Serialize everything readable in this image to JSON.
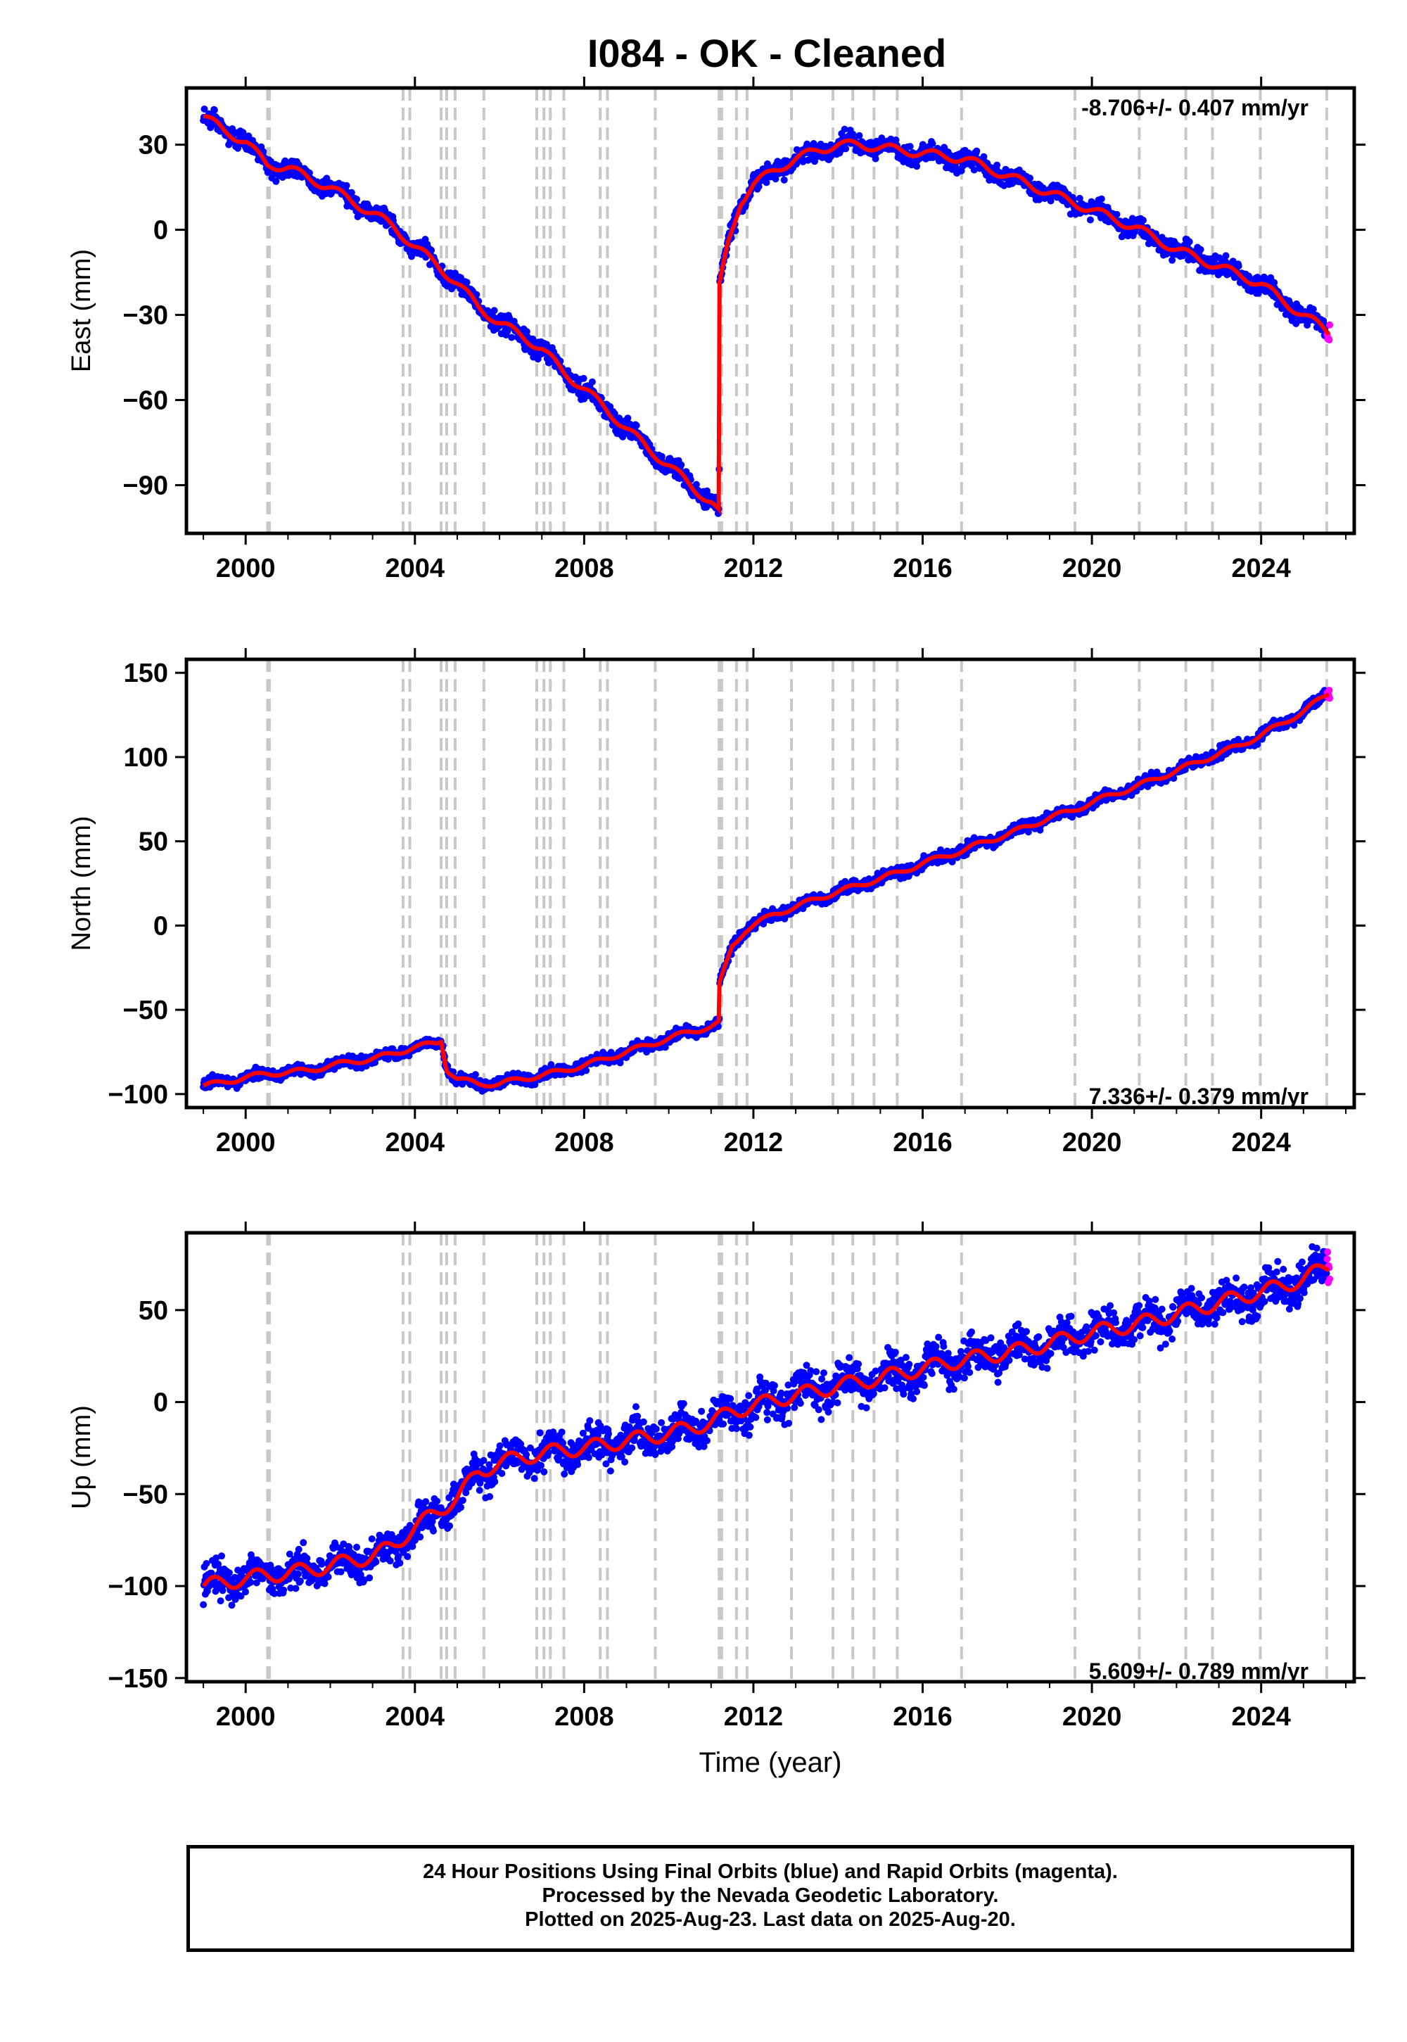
{
  "title": "I084  - OK - Cleaned",
  "footer": {
    "line1": "24 Hour Positions Using Final Orbits (blue) and Rapid Orbits (magenta).",
    "line2": "Processed by the Nevada Geodetic Laboratory.",
    "line3": "Plotted on 2025-Aug-23. Last data on 2025-Aug-20."
  },
  "colors": {
    "final_orbits": "#0000ff",
    "rapid_orbits": "#ff00ff",
    "model": "#ff0000",
    "event_lines": "#c8c8c8"
  },
  "event_dates": [
    2000.52,
    2000.56,
    2003.72,
    2003.88,
    2004.62,
    2004.75,
    2004.95,
    2005.63,
    2006.88,
    2007.05,
    2007.2,
    2007.52,
    2008.38,
    2008.55,
    2009.68,
    2011.19,
    2011.25,
    2011.6,
    2011.85,
    2012.9,
    2013.88,
    2014.35,
    2014.85,
    2015.4,
    2016.92,
    2019.6,
    2021.12,
    2022.22,
    2022.85,
    2023.98,
    2025.55
  ],
  "chart_data": [
    {
      "type": "scatter",
      "ylabel": "East (mm)",
      "xlabel": "",
      "rate_label": "-8.706+/- 0.407 mm/yr",
      "xlim": [
        1998.6,
        2026.2
      ],
      "ylim": [
        -107,
        50
      ],
      "x_ticks": [
        "2000",
        "2004",
        "2008",
        "2012",
        "2016",
        "2020",
        "2024"
      ],
      "y_ticks": [
        {
          "value": 30,
          "label": "30"
        },
        {
          "value": 0,
          "label": "0"
        },
        {
          "value": -30,
          "label": "−30"
        },
        {
          "value": -60,
          "label": "−60"
        },
        {
          "value": -90,
          "label": "−90"
        }
      ],
      "grid": false,
      "series": [
        {
          "x": [
            1999.0,
            1999.5,
            2000.0,
            2000.5,
            2001.0,
            2001.5,
            2002.0,
            2002.5,
            2003.0,
            2003.5,
            2004.0,
            2004.5,
            2005.0,
            2005.5,
            2006.0,
            2006.5,
            2007.0,
            2007.5,
            2008.0,
            2008.5,
            2009.0,
            2009.5,
            2010.0,
            2010.5,
            2011.0,
            2011.19,
            2011.2,
            2011.4,
            2011.7,
            2012.0,
            2012.5,
            2013.0,
            2013.5,
            2014.0,
            2014.5,
            2015.0,
            2015.5,
            2016.0,
            2016.5,
            2017.0,
            2017.5,
            2018.0,
            2018.5,
            2019.0,
            2019.5,
            2020.0,
            2020.5,
            2021.0,
            2021.5,
            2022.0,
            2022.5,
            2023.0,
            2023.5,
            2024.0,
            2024.5,
            2025.0,
            2025.6
          ],
          "y": [
            40,
            35,
            31,
            23,
            22,
            18,
            15,
            10,
            6,
            1,
            -6,
            -12,
            -19,
            -27,
            -33,
            -37,
            -42,
            -50,
            -56,
            -63,
            -70,
            -77,
            -83,
            -90,
            -96,
            -100,
            -20,
            -5,
            10,
            16,
            21,
            25,
            28,
            30,
            30,
            29,
            28,
            27,
            26,
            25,
            22,
            19,
            16,
            13,
            10,
            7,
            4,
            1,
            -3,
            -7,
            -10,
            -13,
            -16,
            -19,
            -25,
            -30,
            -36
          ]
        }
      ]
    },
    {
      "type": "scatter",
      "ylabel": "North (mm)",
      "xlabel": "",
      "rate_label": "7.336+/- 0.379 mm/yr",
      "xlim": [
        1998.6,
        2026.2
      ],
      "ylim": [
        -108,
        158
      ],
      "x_ticks": [
        "2000",
        "2004",
        "2008",
        "2012",
        "2016",
        "2020",
        "2024"
      ],
      "y_ticks": [
        {
          "value": 150,
          "label": "150"
        },
        {
          "value": 100,
          "label": "100"
        },
        {
          "value": 50,
          "label": "50"
        },
        {
          "value": 0,
          "label": "0"
        },
        {
          "value": -50,
          "label": "−50"
        },
        {
          "value": -100,
          "label": "−100"
        }
      ],
      "grid": false,
      "series": [
        {
          "x": [
            1999.0,
            1999.5,
            2000.0,
            2000.5,
            2001.0,
            2001.5,
            2002.0,
            2002.5,
            2003.0,
            2003.5,
            2004.0,
            2004.5,
            2004.62,
            2004.75,
            2005.0,
            2005.5,
            2006.0,
            2006.5,
            2007.0,
            2007.5,
            2008.0,
            2008.5,
            2009.0,
            2009.5,
            2010.0,
            2010.5,
            2011.0,
            2011.19,
            2011.2,
            2011.5,
            2011.8,
            2012.0,
            2012.5,
            2013.0,
            2013.5,
            2014.0,
            2014.5,
            2015.0,
            2015.5,
            2016.0,
            2016.5,
            2017.0,
            2017.5,
            2018.0,
            2018.5,
            2019.0,
            2019.5,
            2020.0,
            2020.5,
            2021.0,
            2021.5,
            2022.0,
            2022.5,
            2023.0,
            2023.5,
            2024.0,
            2024.5,
            2025.0,
            2025.6
          ],
          "y": [
            -95,
            -93,
            -90,
            -88,
            -87,
            -86,
            -83,
            -81,
            -79,
            -76,
            -72,
            -70,
            -68,
            -85,
            -91,
            -94,
            -94,
            -91,
            -89,
            -86,
            -83,
            -79,
            -75,
            -71,
            -67,
            -63,
            -60,
            -58,
            -35,
            -12,
            -3,
            0,
            7,
            11,
            16,
            20,
            24,
            28,
            32,
            37,
            41,
            45,
            50,
            54,
            59,
            64,
            68,
            73,
            78,
            82,
            87,
            92,
            97,
            102,
            107,
            113,
            120,
            127,
            138
          ]
        }
      ]
    },
    {
      "type": "scatter",
      "ylabel": "Up (mm)",
      "xlabel": "Time (year)",
      "rate_label": "5.609+/- 0.789 mm/yr",
      "xlim": [
        1998.6,
        2026.2
      ],
      "ylim": [
        -152,
        92
      ],
      "x_ticks": [
        "2000",
        "2004",
        "2008",
        "2012",
        "2016",
        "2020",
        "2024"
      ],
      "y_ticks": [
        {
          "value": 50,
          "label": "50"
        },
        {
          "value": 0,
          "label": "0"
        },
        {
          "value": -50,
          "label": "−50"
        },
        {
          "value": -100,
          "label": "−100"
        },
        {
          "value": -150,
          "label": "−150"
        }
      ],
      "grid": false,
      "series": [
        {
          "x": [
            1999.0,
            1999.5,
            2000.0,
            2000.5,
            2001.0,
            2001.5,
            2002.0,
            2002.5,
            2003.0,
            2003.5,
            2004.0,
            2004.5,
            2005.0,
            2005.5,
            2006.0,
            2006.5,
            2007.0,
            2007.5,
            2008.0,
            2008.5,
            2009.0,
            2009.5,
            2010.0,
            2010.5,
            2011.0,
            2011.5,
            2012.0,
            2012.5,
            2013.0,
            2013.5,
            2014.0,
            2014.5,
            2015.0,
            2015.5,
            2016.0,
            2016.5,
            2017.0,
            2017.5,
            2018.0,
            2018.5,
            2019.0,
            2019.5,
            2020.0,
            2020.5,
            2021.0,
            2021.5,
            2022.0,
            2022.5,
            2023.0,
            2023.5,
            2024.0,
            2024.5,
            2025.0,
            2025.6
          ],
          "y": [
            -100,
            -98,
            -96,
            -94,
            -93,
            -91,
            -89,
            -86,
            -84,
            -78,
            -68,
            -60,
            -52,
            -38,
            -33,
            -30,
            -28,
            -26,
            -25,
            -23,
            -21,
            -19,
            -17,
            -14,
            -11,
            -5,
            -2,
            1,
            4,
            6,
            9,
            11,
            13,
            16,
            18,
            21,
            23,
            25,
            27,
            29,
            32,
            35,
            38,
            40,
            42,
            45,
            48,
            51,
            54,
            57,
            60,
            63,
            67,
            74
          ]
        }
      ]
    }
  ]
}
